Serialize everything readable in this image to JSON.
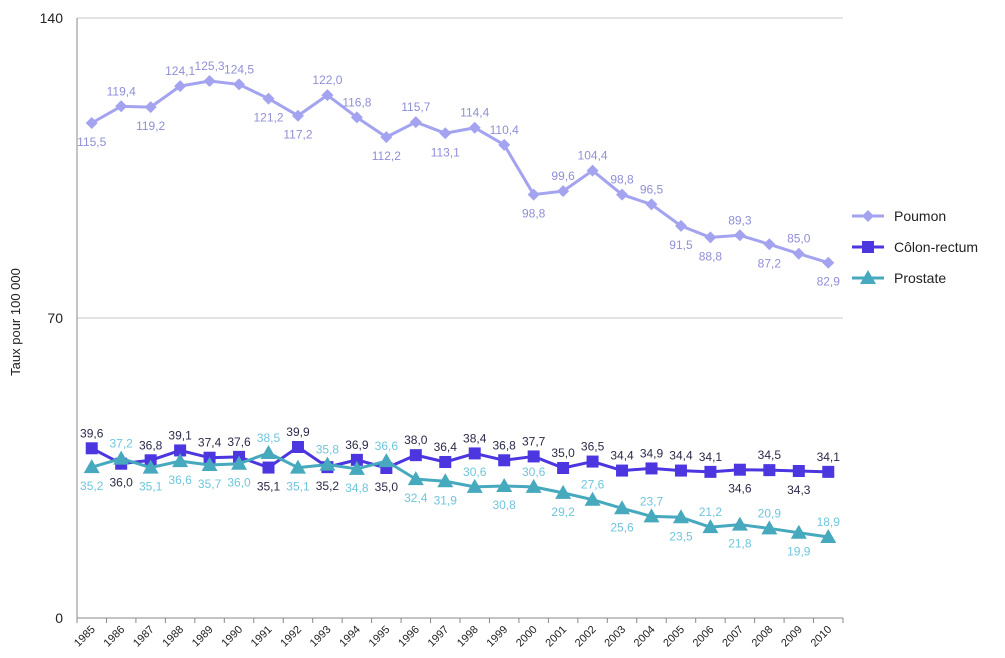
{
  "chart_data": {
    "type": "line",
    "title": "",
    "xlabel": "",
    "ylabel": "Taux pour 100 000",
    "ylim": [
      0,
      140
    ],
    "yticks": [
      "0",
      "70",
      "140"
    ],
    "grid": true,
    "legend_position": "right",
    "x": [
      "1985",
      "1986",
      "1987",
      "1988",
      "1989",
      "1990",
      "1991",
      "1992",
      "1993",
      "1994",
      "1995",
      "1996",
      "1997",
      "1998",
      "1999",
      "2000",
      "2001",
      "2002",
      "2003",
      "2004",
      "2005",
      "2006",
      "2007",
      "2008",
      "2009",
      "2010"
    ],
    "series": [
      {
        "name": "Poumon",
        "color": "#a3a3f0",
        "marker": "diamond",
        "values": [
          115.5,
          119.4,
          119.2,
          124.1,
          125.3,
          124.5,
          121.2,
          117.2,
          122.0,
          116.8,
          112.2,
          115.7,
          113.1,
          114.4,
          110.4,
          98.8,
          99.6,
          104.4,
          98.8,
          96.5,
          91.5,
          88.8,
          89.3,
          87.2,
          85.0,
          82.9
        ],
        "labels": [
          "115,5",
          "119,4",
          "119,2",
          "124,1",
          "125,3",
          "124,5",
          "121,2",
          "117,2",
          "122,0",
          "116,8",
          "112,2",
          "115,7",
          "113,1",
          "114,4",
          "110,4",
          "98,8",
          "99,6",
          "104,4",
          "98,8",
          "96,5",
          "91,5",
          "88,8",
          "89,3",
          "87,2",
          "85,0",
          "82,9"
        ],
        "label_side": [
          1,
          -1,
          1,
          -1,
          -1,
          -1,
          1,
          1,
          -1,
          -1,
          1,
          -1,
          1,
          -1,
          -1,
          1,
          -1,
          -1,
          -1,
          -1,
          1,
          1,
          -1,
          1,
          -1,
          1
        ],
        "label_color": "#8f8fd8"
      },
      {
        "name": "Côlon-rectum",
        "color": "#4b36e0",
        "marker": "square",
        "values": [
          39.6,
          36.0,
          36.8,
          39.1,
          37.4,
          37.6,
          35.1,
          39.9,
          35.2,
          36.9,
          35.0,
          38.0,
          36.4,
          38.4,
          36.8,
          37.7,
          35.0,
          36.5,
          34.4,
          34.9,
          34.4,
          34.1,
          34.6,
          34.5,
          34.3,
          34.1
        ],
        "labels": [
          "39,6",
          "36,0",
          "36,8",
          "39,1",
          "37,4",
          "37,6",
          "35,1",
          "39,9",
          "35,2",
          "36,9",
          "35,0",
          "38,0",
          "36,4",
          "38,4",
          "36,8",
          "37,7",
          "35,0",
          "36,5",
          "34,4",
          "34,9",
          "34,4",
          "34,1",
          "34,6",
          "34,5",
          "34,3",
          "34,1"
        ],
        "label_side": [
          -1,
          1,
          -1,
          -1,
          -1,
          -1,
          1,
          -1,
          1,
          -1,
          1,
          -1,
          -1,
          -1,
          -1,
          -1,
          -1,
          -1,
          -1,
          -1,
          -1,
          -1,
          1,
          -1,
          1,
          -1
        ],
        "label_color": "#2a2a4a"
      },
      {
        "name": "Prostate",
        "color": "#47a9bd",
        "marker": "triangle",
        "values": [
          35.2,
          37.2,
          35.1,
          36.6,
          35.7,
          36.0,
          38.5,
          35.1,
          35.8,
          34.8,
          36.6,
          32.4,
          31.9,
          30.6,
          30.8,
          30.6,
          29.2,
          27.6,
          25.6,
          23.7,
          23.5,
          21.2,
          21.8,
          20.9,
          19.9,
          18.9
        ],
        "labels": [
          "35,2",
          "37,2",
          "35,1",
          "36,6",
          "35,7",
          "36,0",
          "38,5",
          "35,1",
          "35,8",
          "34,8",
          "36,6",
          "32,4",
          "31,9",
          "30,6",
          "30,8",
          "30,6",
          "29,2",
          "27,6",
          "25,6",
          "23,7",
          "23,5",
          "21,2",
          "21,8",
          "20,9",
          "19,9",
          "18,9"
        ],
        "label_side": [
          1,
          -1,
          1,
          1,
          1,
          1,
          -1,
          1,
          -1,
          1,
          -1,
          1,
          1,
          -1,
          1,
          -1,
          1,
          -1,
          1,
          -1,
          1,
          -1,
          1,
          -1,
          1,
          -1
        ],
        "label_color": "#6fc6dc"
      }
    ]
  }
}
